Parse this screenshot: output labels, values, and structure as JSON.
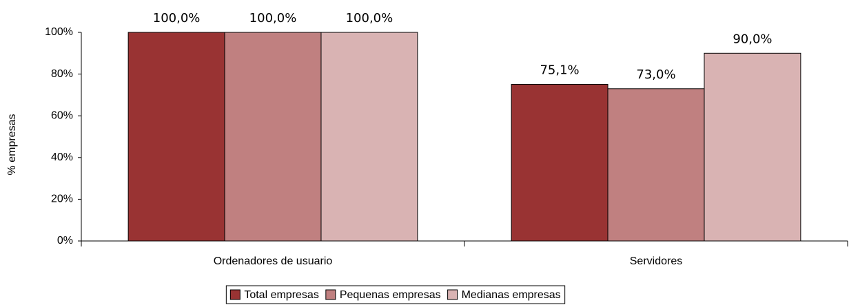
{
  "chart_data": {
    "type": "bar",
    "categories": [
      "Ordenadores de usuario",
      "Servidores"
    ],
    "series": [
      {
        "name": "Total empresas",
        "color": "#993333",
        "values": [
          100,
          75.1
        ],
        "value_labels": [
          "100,0%",
          "75,1%"
        ]
      },
      {
        "name": "Pequenas empresas",
        "color": "#c08080",
        "values": [
          100,
          73
        ],
        "value_labels": [
          "100,0%",
          "73,0%"
        ]
      },
      {
        "name": "Medianas empresas",
        "color": "#d9b3b3",
        "values": [
          100,
          90
        ],
        "value_labels": [
          "100,0%",
          "90,0%"
        ]
      }
    ],
    "ylabel": "% empresas",
    "ylim": [
      0,
      100
    ],
    "yticks": [
      {
        "value": 0,
        "label": "0%"
      },
      {
        "value": 20,
        "label": "20%"
      },
      {
        "value": 40,
        "label": "40%"
      },
      {
        "value": 60,
        "label": "60%"
      },
      {
        "value": 80,
        "label": "80%"
      },
      {
        "value": 100,
        "label": "100%"
      }
    ],
    "grid": false,
    "legend": "bottom"
  }
}
